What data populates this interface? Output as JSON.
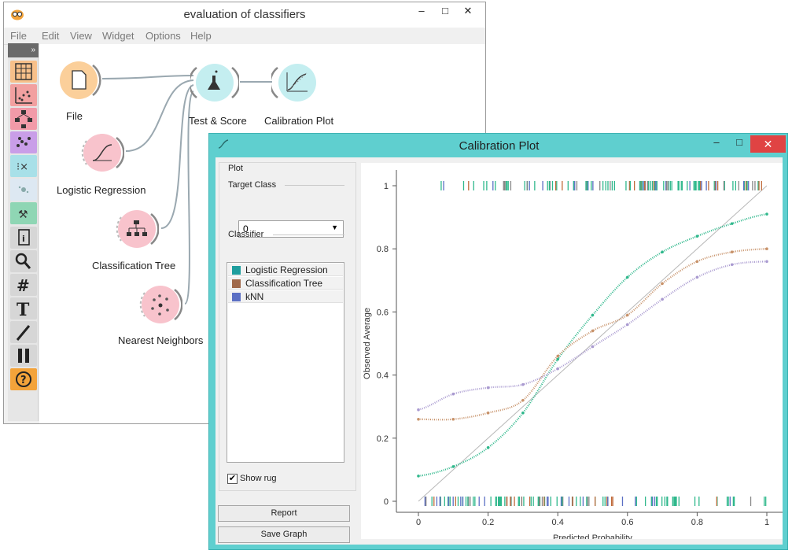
{
  "main_window": {
    "title": "evaluation of classifiers",
    "menu": [
      "File",
      "Edit",
      "View",
      "Widget",
      "Options",
      "Help"
    ],
    "window_controls": [
      "–",
      "□",
      "✕"
    ],
    "toolbox_expand": "»",
    "nodes": {
      "file": "File",
      "logistic_regression": "Logistic Regression",
      "classification_tree": "Classification Tree",
      "nearest_neighbors": "Nearest Neighbors",
      "test_score": "Test & Score",
      "calibration_plot": "Calibration Plot"
    }
  },
  "calibration_window": {
    "title": "Calibration Plot",
    "window_controls": [
      "–",
      "□",
      "✕"
    ],
    "plot_group": "Plot",
    "target_class_label": "Target Class",
    "target_class_value": "0",
    "classifier_label": "Classifier",
    "classifiers": [
      {
        "name": "Logistic Regression",
        "color": "#1f9e9e"
      },
      {
        "name": "Classification Tree",
        "color": "#a0694a"
      },
      {
        "name": "kNN",
        "color": "#5b6fc4"
      }
    ],
    "show_rug_label": "Show rug",
    "show_rug_checked": true,
    "report_button": "Report",
    "save_graph_button": "Save Graph"
  },
  "chart_data": {
    "type": "line",
    "xlabel": "Predicted Probability",
    "ylabel": "Observed Average",
    "xlim": [
      0,
      1
    ],
    "ylim": [
      0,
      1
    ],
    "x_ticks": [
      "0",
      "0.2",
      "0.4",
      "0.6",
      "0.8",
      "1"
    ],
    "y_ticks": [
      "0",
      "0.2",
      "0.4",
      "0.6",
      "0.8",
      "1"
    ],
    "diagonal": true,
    "rug": true,
    "series": [
      {
        "name": "Logistic Regression",
        "color": "#2fb88c",
        "x": [
          0,
          0.1,
          0.2,
          0.3,
          0.4,
          0.5,
          0.6,
          0.7,
          0.8,
          0.9,
          1
        ],
        "y": [
          0.08,
          0.11,
          0.17,
          0.28,
          0.45,
          0.59,
          0.71,
          0.79,
          0.84,
          0.88,
          0.91
        ]
      },
      {
        "name": "Classification Tree",
        "color": "#c8936b",
        "x": [
          0,
          0.1,
          0.2,
          0.3,
          0.4,
          0.5,
          0.6,
          0.7,
          0.8,
          0.9,
          1
        ],
        "y": [
          0.26,
          0.26,
          0.28,
          0.32,
          0.46,
          0.54,
          0.59,
          0.69,
          0.76,
          0.79,
          0.8
        ]
      },
      {
        "name": "kNN",
        "color": "#a99ad0",
        "x": [
          0,
          0.1,
          0.2,
          0.3,
          0.4,
          0.5,
          0.6,
          0.7,
          0.8,
          0.9,
          1
        ],
        "y": [
          0.29,
          0.34,
          0.36,
          0.37,
          0.42,
          0.49,
          0.56,
          0.64,
          0.71,
          0.75,
          0.76
        ]
      }
    ]
  }
}
